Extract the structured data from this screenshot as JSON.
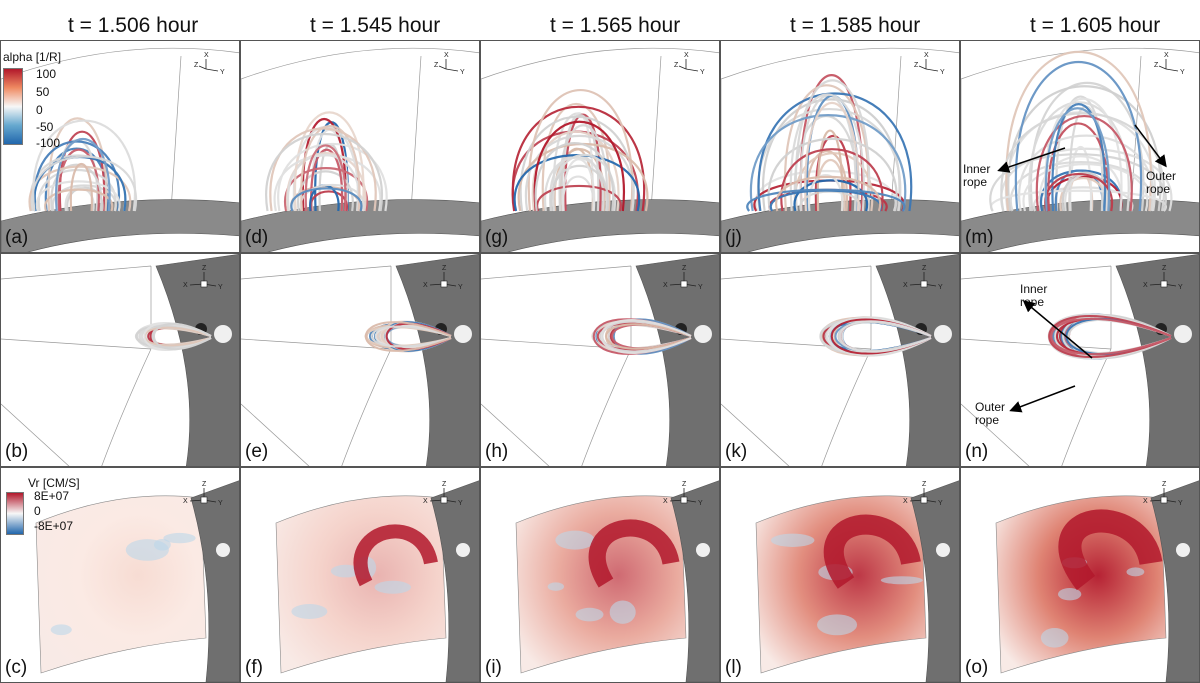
{
  "column_titles": [
    "t = 1.506 hour",
    "t = 1.545 hour",
    "t = 1.565 hour",
    "t = 1.585 hour",
    "t = 1.605 hour"
  ],
  "panel_labels": [
    [
      "(a)",
      "(d)",
      "(g)",
      "(j)",
      "(m)"
    ],
    [
      "(b)",
      "(e)",
      "(h)",
      "(k)",
      "(n)"
    ],
    [
      "(c)",
      "(f)",
      "(i)",
      "(l)",
      "(o)"
    ]
  ],
  "alpha_legend": {
    "title": "alpha [1/R]",
    "ticks": [
      "100",
      "50",
      "0",
      "-50",
      "-100"
    ]
  },
  "vr_legend": {
    "title": "Vr [CM/S]",
    "ticks": [
      "8E+07",
      "0",
      "-8E+07"
    ]
  },
  "axis_labels": {
    "x": "X",
    "y": "Y",
    "z": "Z"
  },
  "annotations": {
    "m_inner": "Inner\nrope",
    "m_outer": "Outer\nrope",
    "n_inner": "Inner\nrope",
    "n_outer": "Outer\nrope"
  },
  "colors": {
    "red": "#b2182b",
    "white": "#f7f7f7",
    "blue": "#2166ac",
    "grey": "#7a7a7a"
  }
}
